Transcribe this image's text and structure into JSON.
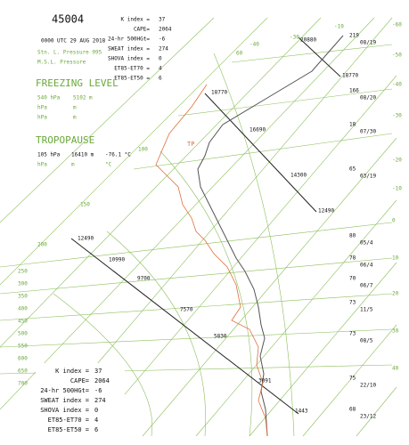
{
  "header": {
    "station": "45004",
    "time": "0000 UTC 29 AUG 2018",
    "stn_pressure": "Stn. L. Pressure 995",
    "msl_pressure": "M.S.L. Pressure"
  },
  "indices": [
    {
      "label": "K index =",
      "value": "37"
    },
    {
      "label": "CAPE=",
      "value": "2064"
    },
    {
      "label": "24-hr 500HGt=",
      "value": "-6"
    },
    {
      "label": "SWEAT index =",
      "value": "274"
    },
    {
      "label": "SHOVA index =",
      "value": "0"
    },
    {
      "label": "ET85-ET70 =",
      "value": "4"
    },
    {
      "label": "ET85-ET50 =",
      "value": "6"
    }
  ],
  "freezing_level": {
    "title": "FREEZING LEVEL",
    "rows": [
      [
        "540 hPa",
        "5102 m"
      ],
      [
        "hPa",
        "m"
      ],
      [
        "hPa",
        "m"
      ]
    ]
  },
  "tropopause": {
    "title": "TROPOPAUSE",
    "marker": "TP",
    "rows": [
      [
        "105 hPa",
        "16410 m",
        "-76.1 °C"
      ],
      [
        "hPa",
        "m",
        "°C"
      ]
    ]
  },
  "isotherm_labels": [
    "-60",
    "-50",
    "-40",
    "-30",
    "-20",
    "-10",
    "0",
    "10",
    "20",
    "30",
    "40"
  ],
  "top_labels": [
    "-10",
    "-30",
    "-40",
    "60",
    "100",
    "150",
    "200"
  ],
  "pressure_labels": [
    "250",
    "300",
    "350",
    "400",
    "450",
    "500",
    "550",
    "600",
    "650",
    "700"
  ],
  "height_labels": [
    "20880",
    "18770",
    "18770",
    "16690",
    "14300",
    "12490",
    "12490",
    "10990",
    "9700",
    "7570",
    "5830",
    "3091",
    "1443"
  ],
  "wind_labels": [
    [
      "219",
      "08/19"
    ],
    [
      "166",
      "08/20"
    ],
    [
      "18",
      "07/30"
    ],
    [
      "65",
      "03/19"
    ],
    [
      "80",
      "05/4"
    ],
    [
      "78",
      "06/4"
    ],
    [
      "70",
      "06/7"
    ],
    [
      "73",
      "11/5"
    ],
    [
      "73",
      "08/5"
    ],
    [
      "75",
      "22/10"
    ],
    [
      "68",
      "23/12"
    ]
  ]
}
